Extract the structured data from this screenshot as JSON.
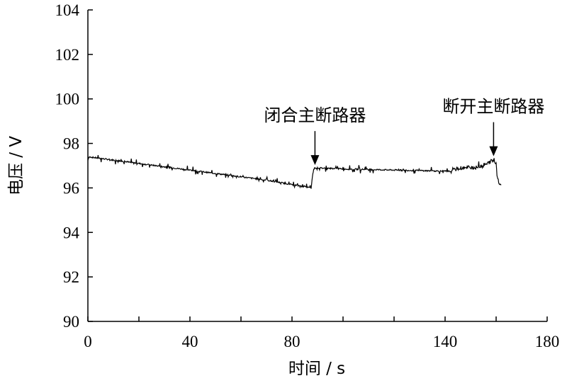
{
  "chart_data": {
    "type": "line",
    "title": "",
    "xlabel": "时间 / s",
    "ylabel": "电压 / V",
    "xlim": [
      0,
      180
    ],
    "ylim": [
      90,
      104
    ],
    "xticks": [
      0,
      40,
      80,
      140,
      180
    ],
    "xtick_labels": [
      "0",
      "40",
      "80",
      "140",
      "180"
    ],
    "xminor": [
      20,
      60,
      100,
      120,
      160
    ],
    "yticks": [
      90,
      92,
      94,
      96,
      98,
      100,
      102,
      104
    ],
    "ytick_labels": [
      "90",
      "92",
      "94",
      "96",
      "98",
      "100",
      "102",
      "104"
    ],
    "grid": false,
    "series": [
      {
        "name": "",
        "color": "#000000",
        "x": [
          0,
          10,
          20,
          30,
          40,
          50,
          60,
          70,
          80,
          87.5,
          88,
          88.5,
          89,
          95,
          100,
          110,
          120,
          130,
          140,
          143,
          144,
          146,
          148,
          150,
          152,
          154,
          156,
          158,
          159,
          160,
          160.5,
          161,
          162
        ],
        "y": [
          97.4,
          97.25,
          97.1,
          96.95,
          96.8,
          96.65,
          96.5,
          96.35,
          96.15,
          96.0,
          96.5,
          96.85,
          96.9,
          96.88,
          96.85,
          96.83,
          96.8,
          96.78,
          96.75,
          96.75,
          96.85,
          96.9,
          96.88,
          96.95,
          96.9,
          97.0,
          97.05,
          97.2,
          97.3,
          97.1,
          96.5,
          96.2,
          96.15
        ]
      }
    ],
    "annotations": [
      {
        "text": "闭合主断路器",
        "x": 89,
        "y": 96.9
      },
      {
        "text": "断开主断路器",
        "x": 159,
        "y": 97.3
      }
    ]
  }
}
